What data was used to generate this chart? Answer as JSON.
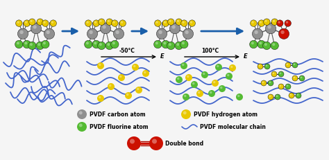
{
  "background_color": "#f5f5f5",
  "atom_colors": {
    "carbon": "#909090",
    "hydrogen": "#e8c800",
    "fluorine": "#55bb33",
    "double_bond_red": "#cc1100",
    "double_bond_orange": "#dd3300"
  },
  "arrow_color": "#1a5faa",
  "chain_color": "#4466cc",
  "panel_labels": [
    "-50°C",
    "100°C"
  ],
  "field_label": "E",
  "legend": {
    "carbon_label": "PVDF carbon atom",
    "hydrogen_label": "PVDF hydrogen atom",
    "fluorine_label": "PVDF fluorine atom",
    "chain_label": "PVDF molecular chain",
    "double_label": "Double bond"
  }
}
